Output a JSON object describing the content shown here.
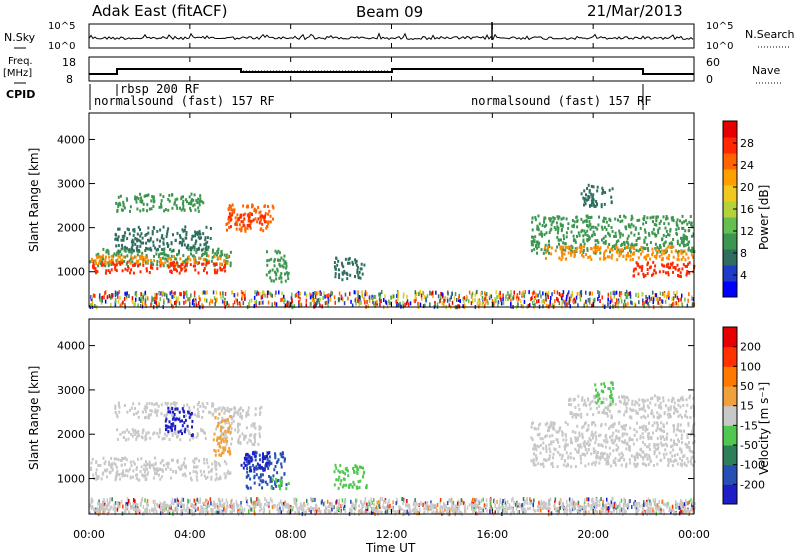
{
  "header": {
    "radar": "Adak East (fitACF)",
    "beam": "Beam 09",
    "date": "21/Mar/2013"
  },
  "top_panels": {
    "nsky_label": "N.Sky",
    "nsky_ticks": [
      "10^5",
      "10^0"
    ],
    "nsearch_label": "N.Search",
    "nsearch_ticks": [
      "10^5",
      "10^0"
    ],
    "freq_label_1": "Freq.",
    "freq_label_2": "[MHz]",
    "freq_ticks": [
      "18",
      "8"
    ],
    "nave_label": "Nave",
    "nave_ticks": [
      "60",
      "0"
    ],
    "cpid_label": "CPID",
    "cpid_segments": [
      {
        "label": "normalsound (fast) 157 RF",
        "start_h": 0.0,
        "end_h": 1.1
      },
      {
        "label": "rbsp 200 RF",
        "start_h": 1.1,
        "end_h": 22.0
      },
      {
        "label": "normalsound (fast) 157 RF",
        "start_h": 22.0,
        "end_h": 24.0
      }
    ],
    "cpid_texts": [
      "normalsound (fast) 157 RF",
      "rbsp 200 RF",
      "normalsound (fast) 157 RF"
    ]
  },
  "chart_data": [
    {
      "type": "heatmap",
      "name": "Power",
      "xlabel": "",
      "ylabel": "Slant Range [km]",
      "xlim_h": [
        0,
        24
      ],
      "ylim": [
        200,
        4600
      ],
      "yticks": [
        "1000",
        "2000",
        "3000",
        "4000"
      ],
      "colorbar": {
        "label": "Power [dB]",
        "ticks": [
          "28",
          "24",
          "20",
          "16",
          "12",
          "8",
          "4"
        ],
        "colors": [
          "#0000ff",
          "#1e3cc8",
          "#2f6e5f",
          "#3c9650",
          "#64be50",
          "#b4d23c",
          "#f0c81e",
          "#ffa000",
          "#ff6400",
          "#ff2800",
          "#e60000"
        ]
      },
      "features": [
        {
          "t0": 0.0,
          "t1": 5.6,
          "r0": 1150,
          "r1": 1550,
          "c": "#3c9650"
        },
        {
          "t0": 0.0,
          "t1": 5.6,
          "r0": 1200,
          "r1": 1400,
          "c": "#ff8c00"
        },
        {
          "t0": 0.1,
          "t1": 5.4,
          "r0": 1000,
          "r1": 1250,
          "c": "#ff2800"
        },
        {
          "t0": 1.0,
          "t1": 4.8,
          "r0": 1500,
          "r1": 2050,
          "c": "#2f6e5f"
        },
        {
          "t0": 1.0,
          "t1": 4.5,
          "r0": 2400,
          "r1": 2800,
          "c": "#3c9650"
        },
        {
          "t0": 5.4,
          "t1": 7.3,
          "r0": 1950,
          "r1": 2550,
          "c": "#ff6400"
        },
        {
          "t0": 5.5,
          "t1": 7.0,
          "r0": 2050,
          "r1": 2350,
          "c": "#ff2800"
        },
        {
          "t0": 7.0,
          "t1": 7.9,
          "r0": 800,
          "r1": 1500,
          "c": "#3c9650"
        },
        {
          "t0": 9.7,
          "t1": 10.9,
          "r0": 850,
          "r1": 1350,
          "c": "#2f6e5f"
        },
        {
          "t0": 17.5,
          "t1": 24.0,
          "r0": 1450,
          "r1": 2300,
          "c": "#3c9650"
        },
        {
          "t0": 18.0,
          "t1": 24.0,
          "r0": 1300,
          "r1": 1600,
          "c": "#ff8c00"
        },
        {
          "t0": 21.5,
          "t1": 24.0,
          "r0": 900,
          "r1": 1250,
          "c": "#ff2800"
        },
        {
          "t0": 19.5,
          "t1": 20.8,
          "r0": 2500,
          "r1": 3000,
          "c": "#2f6e5f"
        }
      ]
    },
    {
      "type": "heatmap",
      "name": "Velocity",
      "xlabel": "Time UT",
      "ylabel": "Slant Range [km]",
      "xlim_h": [
        0,
        24
      ],
      "ylim": [
        200,
        4600
      ],
      "xticks": [
        "00:00",
        "04:00",
        "08:00",
        "12:00",
        "16:00",
        "20:00",
        "00:00"
      ],
      "yticks": [
        "1000",
        "2000",
        "3000",
        "4000"
      ],
      "colorbar": {
        "label": "Velocity [m s⁻¹]",
        "ticks": [
          "200",
          "100",
          "50",
          "15",
          "-15",
          "-50",
          "-100",
          "-200"
        ],
        "colors": [
          "#1e1ec8",
          "#2850b4",
          "#2e7e5a",
          "#50c850",
          "#c8c8c8",
          "#f0a03c",
          "#ff7800",
          "#ff3200",
          "#e60000"
        ]
      },
      "features": [
        {
          "t0": 0.0,
          "t1": 5.6,
          "r0": 1000,
          "r1": 1500,
          "c": "#c8c8c8"
        },
        {
          "t0": 1.0,
          "t1": 5.0,
          "r0": 2400,
          "r1": 2750,
          "c": "#c8c8c8"
        },
        {
          "t0": 1.0,
          "t1": 4.8,
          "r0": 1900,
          "r1": 2150,
          "c": "#c8c8c8"
        },
        {
          "t0": 3.0,
          "t1": 4.1,
          "r0": 2000,
          "r1": 2650,
          "c": "#1e1ec8"
        },
        {
          "t0": 5.0,
          "t1": 6.8,
          "r0": 1800,
          "r1": 2650,
          "c": "#c8c8c8"
        },
        {
          "t0": 4.9,
          "t1": 5.6,
          "r0": 1500,
          "r1": 2500,
          "c": "#f0a03c"
        },
        {
          "t0": 6.2,
          "t1": 7.8,
          "r0": 800,
          "r1": 1650,
          "c": "#2850b4"
        },
        {
          "t0": 6.0,
          "t1": 7.2,
          "r0": 1200,
          "r1": 1650,
          "c": "#1e1ec8"
        },
        {
          "t0": 7.2,
          "t1": 7.9,
          "r0": 800,
          "r1": 1050,
          "c": "#50c850"
        },
        {
          "t0": 9.7,
          "t1": 11.0,
          "r0": 800,
          "r1": 1350,
          "c": "#50c850"
        },
        {
          "t0": 17.5,
          "t1": 24.0,
          "r0": 1300,
          "r1": 2300,
          "c": "#c8c8c8"
        },
        {
          "t0": 19.0,
          "t1": 24.0,
          "r0": 2400,
          "r1": 2900,
          "c": "#c8c8c8"
        },
        {
          "t0": 20.0,
          "t1": 20.8,
          "r0": 2700,
          "r1": 3200,
          "c": "#50c850"
        },
        {
          "t0": 0.0,
          "t1": 24.0,
          "r0": 250,
          "r1": 480,
          "c": "#c8c8c8"
        }
      ]
    }
  ]
}
